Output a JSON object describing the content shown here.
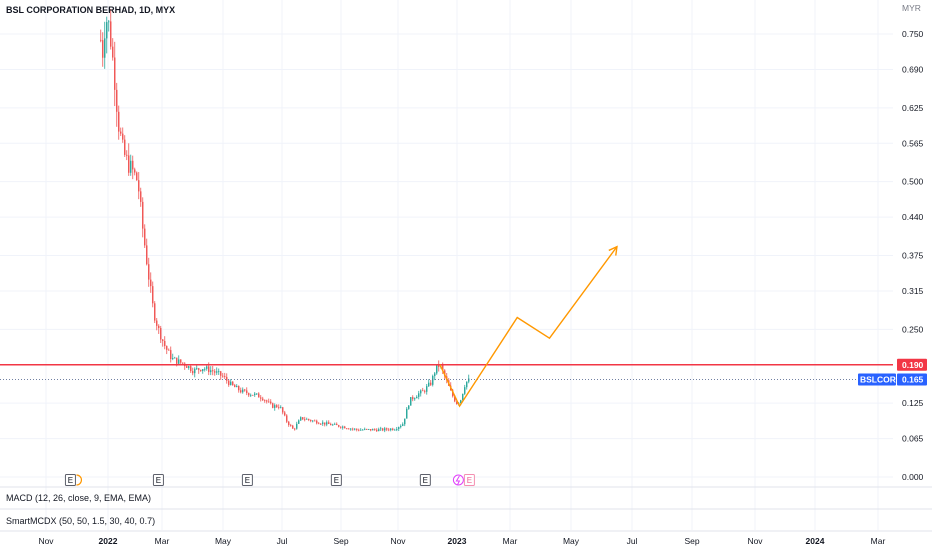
{
  "header": {
    "title": "BSL CORPORATION BERHAD, 1D, MYX"
  },
  "indicators": [
    {
      "label": "MACD (12, 26, close, 9, EMA, EMA)"
    },
    {
      "label": "SmartMCDX (50, 50, 1.5, 30, 40, 0.7)"
    }
  ],
  "events": [
    "E",
    "E",
    "E",
    "E",
    "E",
    "E"
  ],
  "colors": {
    "up": "#26a69a",
    "down": "#ef5350",
    "resistance": "#f23645",
    "projection": "#ff9800",
    "last_price_tag": "#2962ff",
    "dotted_line": "#5d6f95"
  },
  "chart_data": {
    "type": "candlestick",
    "title": "BSL CORPORATION BERHAD, 1D, MYX",
    "currency": "MYR",
    "ylim": [
      0.0,
      0.78
    ],
    "y_ticks": [
      "0.750",
      "0.690",
      "0.625",
      "0.565",
      "0.500",
      "0.440",
      "0.375",
      "0.315",
      "0.250",
      "0.190",
      "0.125",
      "0.065",
      "0.000"
    ],
    "x_ticks": [
      "Nov",
      "2022",
      "Mar",
      "May",
      "Jul",
      "Sep",
      "Nov",
      "2023",
      "Mar",
      "May",
      "Jul",
      "Sep",
      "Nov",
      "2024",
      "Mar"
    ],
    "x_bold": [
      "2022",
      "2023",
      "2024"
    ],
    "price_path": [
      [
        "2021-12-27",
        0.74
      ],
      [
        "2021-12-29",
        0.72
      ],
      [
        "2022-01-01",
        0.78
      ],
      [
        "2022-01-05",
        0.76
      ],
      [
        "2022-01-10",
        0.68
      ],
      [
        "2022-01-14",
        0.6
      ],
      [
        "2022-01-19",
        0.55
      ],
      [
        "2022-01-24",
        0.53
      ],
      [
        "2022-01-28",
        0.52
      ],
      [
        "2022-02-03",
        0.5
      ],
      [
        "2022-02-08",
        0.42
      ],
      [
        "2022-02-14",
        0.34
      ],
      [
        "2022-02-19",
        0.28
      ],
      [
        "2022-02-24",
        0.25
      ],
      [
        "2022-03-03",
        0.22
      ],
      [
        "2022-03-10",
        0.2
      ],
      [
        "2022-03-17",
        0.195
      ],
      [
        "2022-03-24",
        0.19
      ],
      [
        "2022-04-01",
        0.18
      ],
      [
        "2022-04-10",
        0.185
      ],
      [
        "2022-04-20",
        0.18
      ],
      [
        "2022-05-01",
        0.17
      ],
      [
        "2022-05-10",
        0.155
      ],
      [
        "2022-05-20",
        0.145
      ],
      [
        "2022-06-01",
        0.14
      ],
      [
        "2022-06-10",
        0.135
      ],
      [
        "2022-06-20",
        0.12
      ],
      [
        "2022-06-28",
        0.12
      ],
      [
        "2022-07-05",
        0.095
      ],
      [
        "2022-07-12",
        0.08
      ],
      [
        "2022-07-20",
        0.1
      ],
      [
        "2022-08-01",
        0.095
      ],
      [
        "2022-08-15",
        0.09
      ],
      [
        "2022-09-01",
        0.085
      ],
      [
        "2022-09-15",
        0.08
      ],
      [
        "2022-09-28",
        0.08
      ],
      [
        "2022-10-10",
        0.08
      ],
      [
        "2022-10-24",
        0.082
      ],
      [
        "2022-11-01",
        0.09
      ],
      [
        "2022-11-08",
        0.13
      ],
      [
        "2022-11-16",
        0.14
      ],
      [
        "2022-11-22",
        0.145
      ],
      [
        "2022-11-30",
        0.16
      ],
      [
        "2022-12-05",
        0.185
      ],
      [
        "2022-12-09",
        0.19
      ],
      [
        "2022-12-15",
        0.165
      ],
      [
        "2022-12-21",
        0.14
      ],
      [
        "2022-12-26",
        0.125
      ],
      [
        "2022-12-30",
        0.13
      ],
      [
        "2023-01-04",
        0.16
      ],
      [
        "2023-01-09",
        0.165
      ]
    ],
    "horizontal_lines": [
      {
        "label": "0.190",
        "value": 0.19
      },
      {
        "label": "BSLCORP",
        "value": 0.165,
        "price_label": "0.165"
      }
    ],
    "projection_path": [
      [
        "2022-12-09",
        0.19
      ],
      [
        "2022-12-29",
        0.12
      ],
      [
        "2023-02-26",
        0.27
      ],
      [
        "2023-03-31",
        0.235
      ],
      [
        "2023-06-08",
        0.39
      ]
    ],
    "event_dates": [
      "2021-11-26",
      "2022-02-24",
      "2022-05-26",
      "2022-08-25",
      "2022-11-24",
      "2023-01-05"
    ],
    "grid": true
  }
}
